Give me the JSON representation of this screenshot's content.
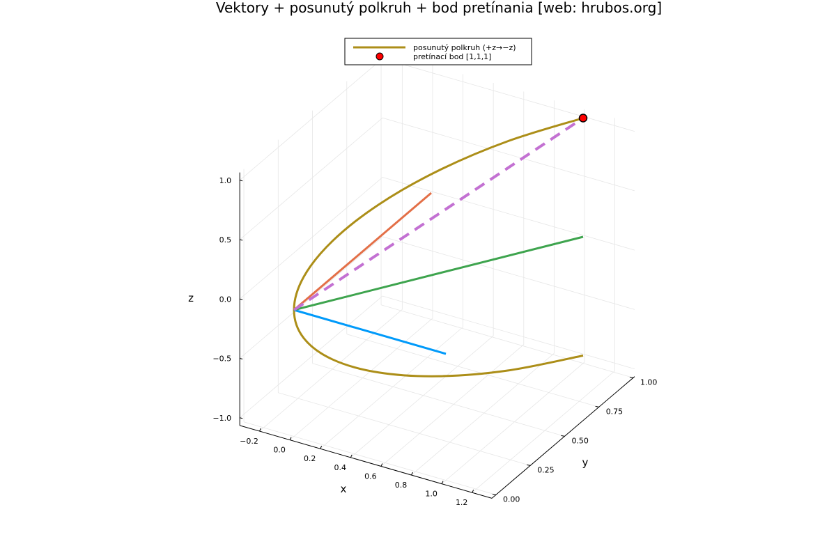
{
  "chart_data": {
    "type": "line3d",
    "title": "Vektory + posunutý polkruh + bod pretínania [web: hrubos.org]",
    "xlabel": "x",
    "ylabel": "y",
    "zlabel": "z",
    "xlim": [
      -0.33,
      1.33
    ],
    "ylim": [
      -0.03,
      1.01
    ],
    "zlim": [
      -1.065,
      1.065
    ],
    "x_ticks": [
      "−0.2",
      "0.0",
      "0.2",
      "0.4",
      "0.6",
      "0.8",
      "1.0",
      "1.2"
    ],
    "x_tick_values": [
      -0.2,
      0,
      0.2,
      0.4,
      0.6,
      0.8,
      1.0,
      1.2
    ],
    "y_ticks": [
      "0.00",
      "0.25",
      "0.50",
      "0.75",
      "1.00"
    ],
    "y_tick_values": [
      0,
      0.25,
      0.5,
      0.75,
      1.0
    ],
    "z_ticks": [
      "−1.0",
      "−0.5",
      "0.0",
      "0.5",
      "1.0"
    ],
    "z_tick_values": [
      -1,
      -0.5,
      0,
      0.5,
      1
    ],
    "grid": true,
    "legend_position": "top",
    "vectors": [
      {
        "from": [
          0,
          0,
          0
        ],
        "to": [
          1,
          0,
          0
        ],
        "color": "#009AFA",
        "style": "solid"
      },
      {
        "from": [
          0,
          0,
          0
        ],
        "to": [
          0,
          1,
          0
        ],
        "color": "#E36F47",
        "style": "solid"
      },
      {
        "from": [
          0,
          0,
          0
        ],
        "to": [
          1,
          1,
          0
        ],
        "color": "#3EA44E",
        "style": "solid"
      },
      {
        "from": [
          0,
          0,
          0
        ],
        "to": [
          1,
          1,
          1
        ],
        "color": "#C371D2",
        "style": "dashed"
      }
    ],
    "series": [
      {
        "name": "posunutý polkruh (+z→−z)",
        "color": "#AC8E18",
        "x": [
          1,
          0.741,
          0.5,
          0.293,
          0.134,
          0.034,
          0,
          0.034,
          0.134,
          0.293,
          0.5,
          0.741,
          1
        ],
        "y": [
          1,
          0.741,
          0.5,
          0.293,
          0.134,
          0.034,
          0,
          0.034,
          0.134,
          0.293,
          0.5,
          0.741,
          1
        ],
        "z": [
          -1,
          -0.966,
          -0.866,
          -0.707,
          -0.5,
          -0.259,
          0,
          0.259,
          0.5,
          0.707,
          0.866,
          0.966,
          1
        ]
      }
    ],
    "points": [
      {
        "name": "pretínací bod [1,1,1]",
        "x": 1,
        "y": 1,
        "z": 1,
        "color": "#FF0000"
      }
    ]
  }
}
